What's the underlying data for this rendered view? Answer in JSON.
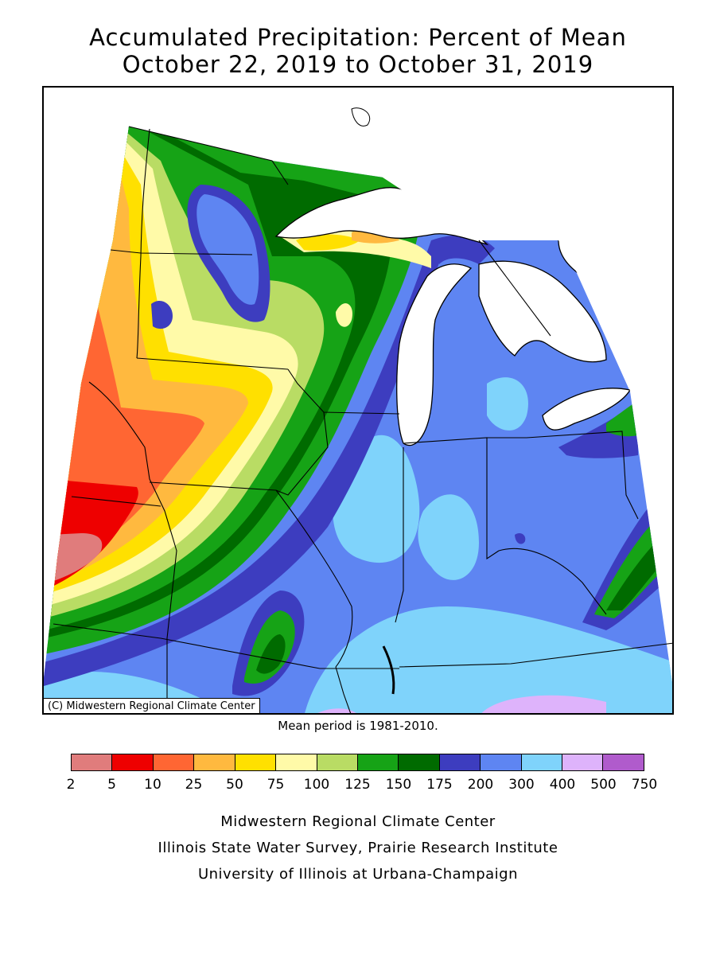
{
  "title": {
    "line1": "Accumulated Precipitation: Percent of Mean",
    "line2": "October 22, 2019 to October 31, 2019"
  },
  "map": {
    "copyright": "(C) Midwestern Regional Climate Center",
    "region": "Midwest United States",
    "regions": [
      {
        "name": "northwest-dry",
        "category": "25-50",
        "color": "#FFB93F"
      },
      {
        "name": "northwest-edge",
        "category": "50-75",
        "color": "#FFE000"
      },
      {
        "name": "southwest-edge",
        "category": "10-25",
        "color": "#FF6633"
      },
      {
        "name": "southwest-min",
        "category": "5-10",
        "color": "#EE0000"
      },
      {
        "name": "southwest-core",
        "category": "2-5",
        "color": "#E07C7C"
      },
      {
        "name": "central-band",
        "category": "75-100",
        "color": "#FFFAA8"
      },
      {
        "name": "north-band",
        "category": "100-125",
        "color": "#B9DC64"
      },
      {
        "name": "wet-band",
        "category": "125-150",
        "color": "#16A316"
      },
      {
        "name": "wet-core",
        "category": "150-175",
        "color": "#006B00"
      },
      {
        "name": "east-wet",
        "category": "200-300",
        "color": "#5E85F2"
      },
      {
        "name": "east-wetter",
        "category": "300-400",
        "color": "#7FD3FB"
      },
      {
        "name": "south-max",
        "category": "400-500",
        "color": "#DEB3FB"
      }
    ]
  },
  "mean_note": "Mean period is 1981-2010.",
  "legend": {
    "labels": [
      "2",
      "5",
      "10",
      "25",
      "50",
      "75",
      "100",
      "125",
      "150",
      "175",
      "200",
      "300",
      "400",
      "500",
      "750"
    ],
    "colors": [
      "#E07C7C",
      "#EE0000",
      "#FF6633",
      "#FFB93F",
      "#FFE000",
      "#FFFAA8",
      "#B9DC64",
      "#16A316",
      "#006B00",
      "#3D3DBF",
      "#5E85F2",
      "#7FD3FB",
      "#DEB3FB",
      "#B05BCC"
    ]
  },
  "credits": {
    "line1": "Midwestern Regional Climate Center",
    "line2": "Illinois State Water Survey, Prairie Research Institute",
    "line3": "University of Illinois at Urbana-Champaign"
  }
}
